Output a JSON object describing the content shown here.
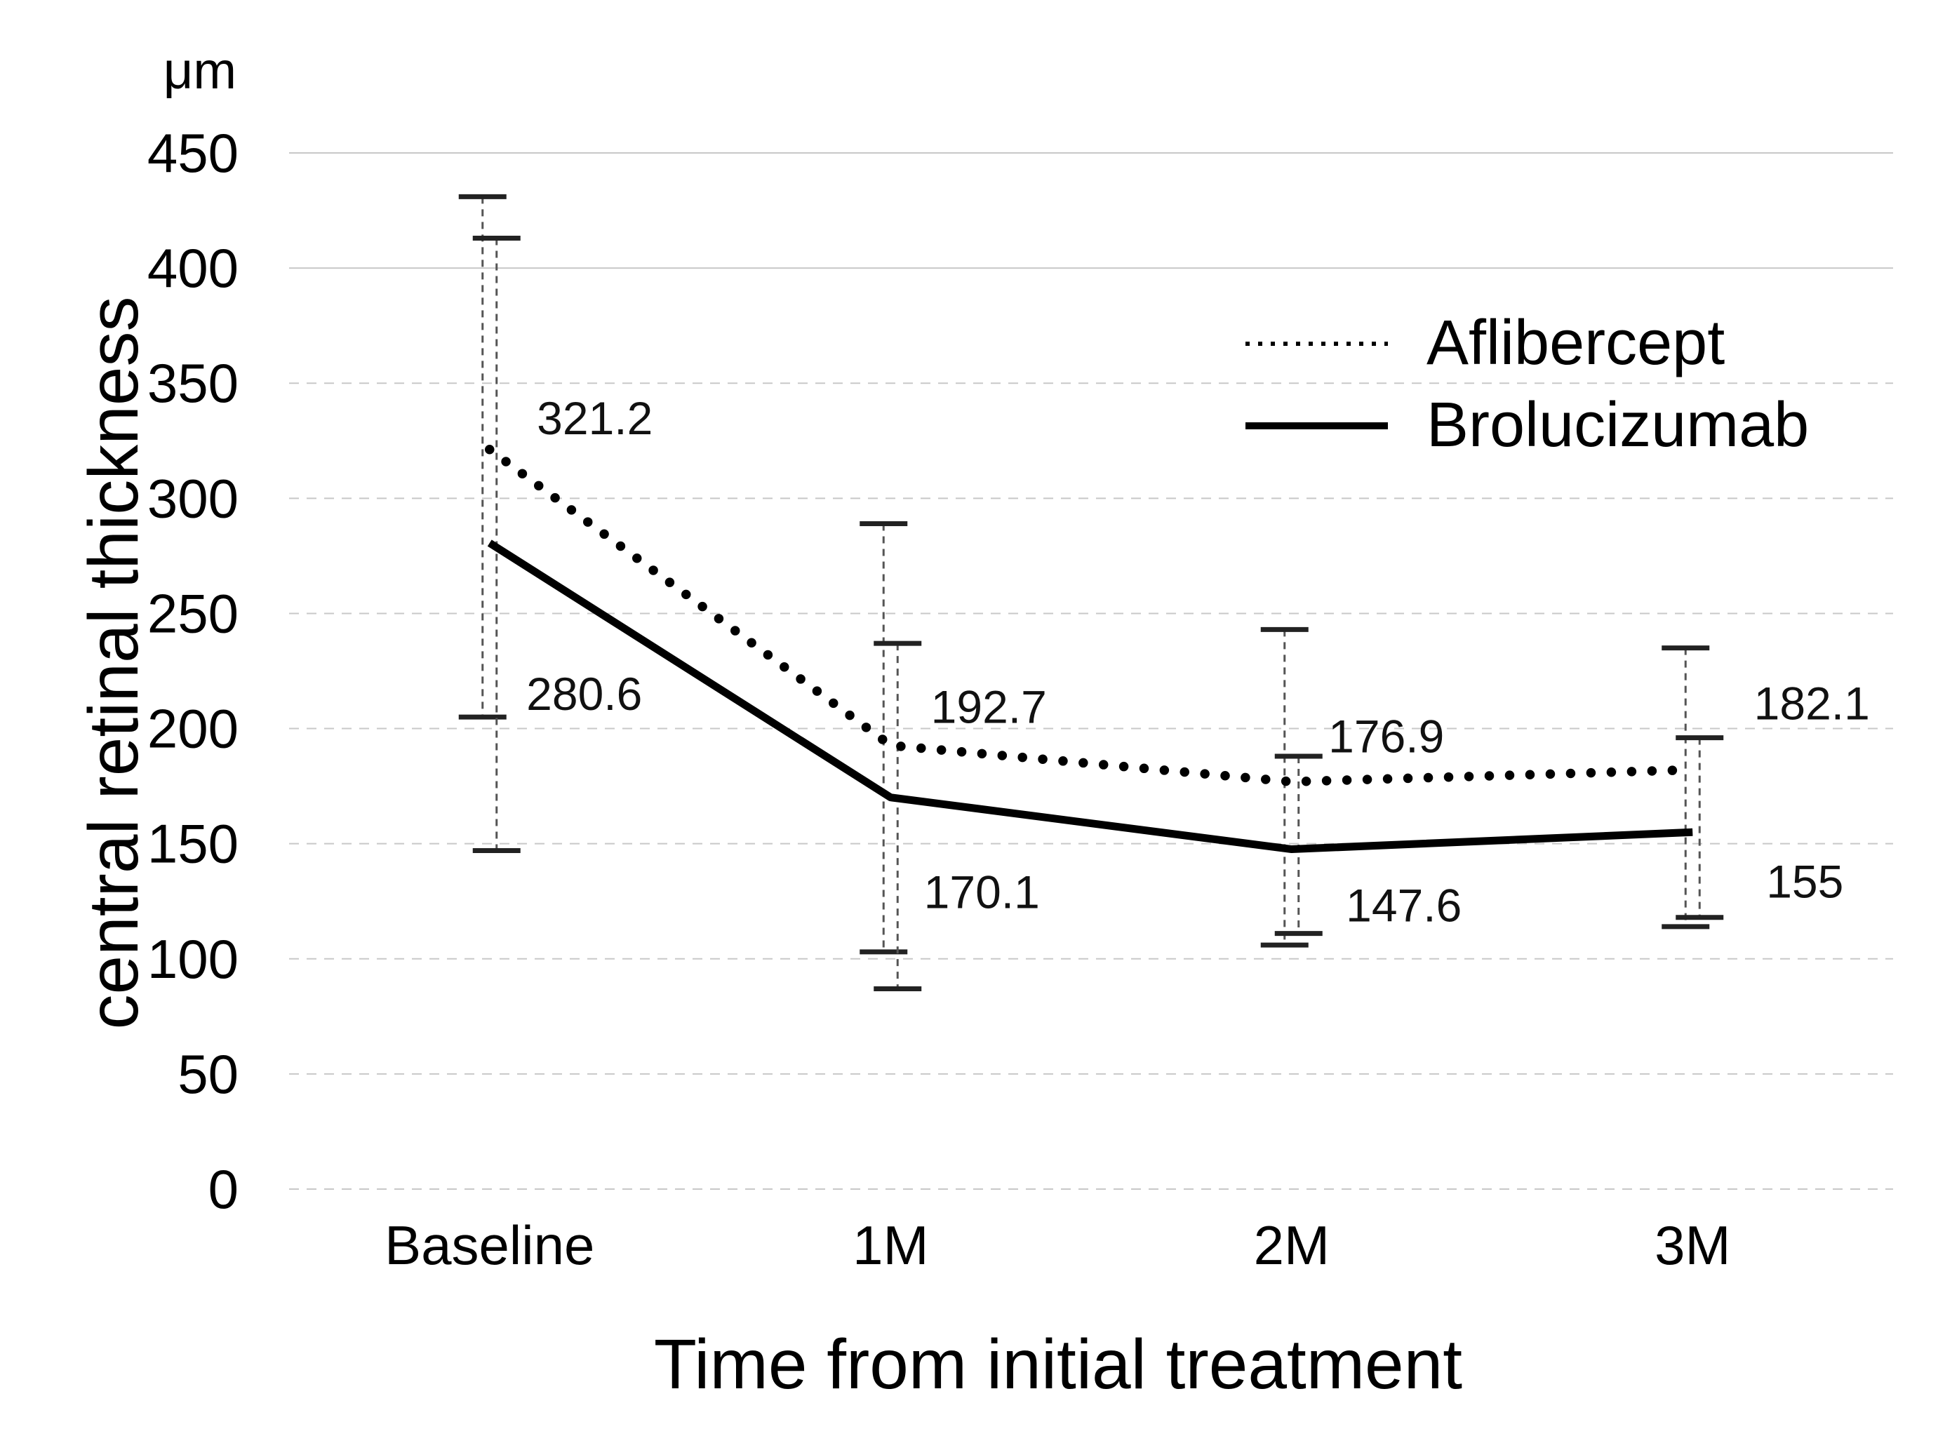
{
  "figure": {
    "unit_label": "μm",
    "y_axis_title": "central retinal thickness",
    "x_axis_title": "Time from initial treatment"
  },
  "legend": {
    "position": "inside-top-right",
    "items": [
      {
        "label": "Aflibercept",
        "line_style": "dotted"
      },
      {
        "label": "Brolucizumab",
        "line_style": "solid"
      }
    ]
  },
  "chart_data": {
    "type": "line",
    "title": "",
    "xlabel": "Time from initial treatment",
    "ylabel": "central retinal thickness",
    "y_unit": "μm",
    "categories": [
      "Baseline",
      "1M",
      "2M",
      "3M"
    ],
    "yticks": [
      0,
      50,
      100,
      150,
      200,
      250,
      300,
      350,
      400,
      450
    ],
    "ylim": [
      0,
      475
    ],
    "grid": true,
    "legend_position": "inside-top-right",
    "series": [
      {
        "name": "Aflibercept",
        "line_style": "dotted",
        "values": [
          321.2,
          192.7,
          176.9,
          182.1
        ],
        "point_labels": [
          "321.2",
          "192.7",
          "176.9",
          "182.1"
        ],
        "error_upper": [
          431,
          289,
          243,
          235
        ],
        "error_lower": [
          205,
          103,
          106,
          114
        ],
        "label_offsets": {
          "dx": [
            150,
            140,
            135,
            170
          ],
          "dy": [
            -45,
            -55,
            -65,
            -95
          ]
        }
      },
      {
        "name": "Brolucizumab",
        "line_style": "solid",
        "values": [
          280.6,
          170.1,
          147.6,
          155
        ],
        "point_labels": [
          "280.6",
          "170.1",
          "147.6",
          "155"
        ],
        "error_upper": [
          413,
          237,
          188,
          196
        ],
        "error_lower": [
          147,
          87,
          111,
          118
        ],
        "label_offsets": {
          "dx": [
            135,
            130,
            160,
            160
          ],
          "dy": [
            215,
            135,
            80,
            70
          ]
        }
      }
    ],
    "colors": {
      "line": "#000000",
      "grid": "#c8c8c8",
      "error_bar_stem": "#555555",
      "error_bar_cap": "#222222",
      "text": "#000000",
      "data_label": "#111111",
      "background": "#ffffff"
    }
  }
}
